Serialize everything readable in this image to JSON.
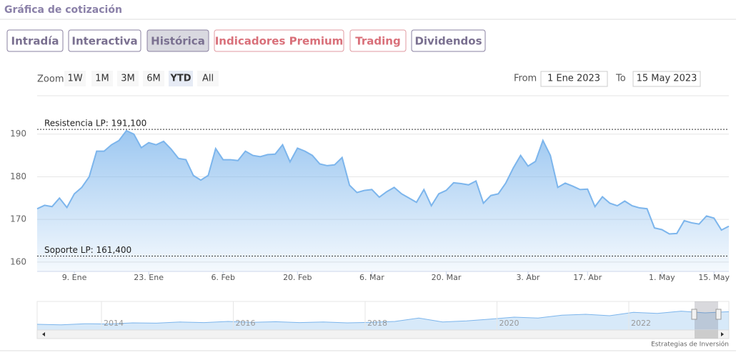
{
  "header": {
    "title": "Gráfica de cotización"
  },
  "tabs": [
    "Intradía",
    "Interactiva",
    "Histórica",
    "Indicadores Premium",
    "Trading",
    "Dividendos"
  ],
  "zoom": {
    "label": "Zoom",
    "buttons": [
      "1W",
      "1M",
      "3M",
      "6M",
      "YTD",
      "All"
    ],
    "active": "YTD"
  },
  "range": {
    "from_label": "From",
    "from": "1 Ene 2023",
    "to_label": "To",
    "to": "15 May 2023"
  },
  "chart_data": {
    "type": "area",
    "color": "#7cb5ec",
    "categories": [
      null,
      null,
      null,
      null,
      null,
      "9. Ene",
      null,
      null,
      null,
      null,
      null,
      null,
      null,
      null,
      null,
      "23. Ene",
      null,
      null,
      null,
      null,
      null,
      null,
      null,
      null,
      null,
      "6. Feb",
      null,
      null,
      null,
      null,
      null,
      null,
      null,
      null,
      null,
      "20. Feb",
      null,
      null,
      null,
      null,
      null,
      null,
      null,
      null,
      null,
      "6. Mar",
      null,
      null,
      null,
      null,
      null,
      null,
      null,
      null,
      null,
      "20. Mar",
      null,
      null,
      null,
      null,
      null,
      null,
      null,
      null,
      null,
      null,
      "3. Abr",
      null,
      null,
      null,
      null,
      null,
      null,
      null,
      "17. Abr",
      null,
      null,
      null,
      null,
      null,
      null,
      null,
      null,
      null,
      "1. May",
      null,
      null,
      null,
      null,
      null,
      null,
      "15. May",
      null,
      null
    ],
    "values": [
      172.5,
      173.3,
      173,
      175,
      172.8,
      176,
      177.5,
      180,
      186,
      186,
      187.5,
      188.5,
      190.8,
      190,
      186.8,
      188,
      187.5,
      188.3,
      186.5,
      184.3,
      184,
      180.3,
      179.2,
      180.3,
      186.6,
      184,
      184,
      183.8,
      186,
      185,
      184.7,
      185.2,
      185.3,
      187.5,
      183.5,
      186.7,
      186,
      185,
      183,
      182.6,
      182.8,
      184.5,
      178,
      176.3,
      176.8,
      177,
      175.2,
      176.5,
      177.5,
      176,
      175,
      174,
      177,
      173.2,
      176,
      176.8,
      178.6,
      178.4,
      178.1,
      179,
      173.8,
      175.6,
      176,
      178.5,
      182,
      185,
      182.5,
      183.6,
      188.5,
      185,
      177.5,
      178.5,
      177.8,
      177,
      177.1,
      173,
      175.3,
      173.8,
      173.2,
      174.3,
      173.2,
      172.7,
      172.5,
      168,
      167.6,
      166.6,
      166.7,
      169.7,
      169.2,
      168.9,
      170.8,
      170.3,
      167.5,
      168.4
    ],
    "ylim": [
      157.8,
      199
    ],
    "yticks": [
      160,
      170,
      180,
      190
    ],
    "grid": true,
    "annotations": [
      {
        "label": "Resistencia LP: 191,100",
        "value": 191.1
      },
      {
        "label": "Soporte LP: 161,400",
        "value": 161.4
      }
    ]
  },
  "navigator": {
    "years": [
      "2014",
      "2016",
      "2018",
      "2020",
      "2022"
    ],
    "values": [
      20,
      18,
      22,
      21,
      25,
      24,
      28,
      26,
      30,
      27,
      29,
      26,
      28,
      25,
      27,
      30,
      42,
      28,
      32,
      38,
      45,
      42,
      52,
      55,
      50,
      62,
      58,
      66,
      60,
      64
    ],
    "ylim": [
      0,
      100
    ]
  },
  "footer": {
    "credit": "Estrategias de Inversión"
  }
}
